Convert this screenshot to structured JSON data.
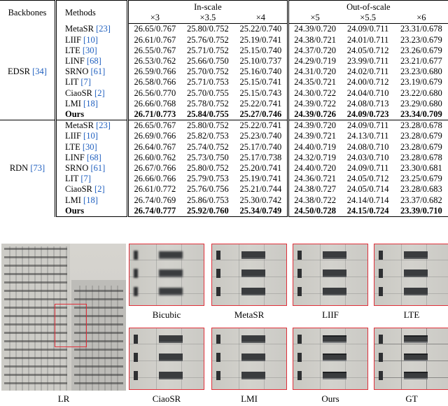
{
  "table": {
    "col_backbones": "Backbones",
    "col_methods": "Methods",
    "group_in": "In-scale",
    "group_out": "Out-of-scale",
    "scales": [
      "×3",
      "×3.5",
      "×4",
      "×5",
      "×5.5",
      "×6"
    ],
    "sections": [
      {
        "backbone": "EDSR",
        "backbone_ref": "[34]",
        "rows": [
          {
            "method": "MetaSR",
            "ref": "[23]",
            "vals": [
              "26.65/0.767",
              "25.80/0.752",
              "25.22/0.740",
              "24.39/0.720",
              "24.09/0.711",
              "23.31/0.678"
            ]
          },
          {
            "method": "LIIF",
            "ref": "[10]",
            "vals": [
              "26.61/0.767",
              "25.76/0.752",
              "25.19/0.741",
              "24.38/0.721",
              "24.01/0.711",
              "23.23/0.679"
            ]
          },
          {
            "method": "LTE",
            "ref": "[30]",
            "vals": [
              "26.55/0.767",
              "25.71/0.752",
              "25.15/0.740",
              "24.37/0.720",
              "24.05/0.712",
              "23.26/0.679"
            ]
          },
          {
            "method": "LINF",
            "ref": "[68]",
            "vals": [
              "26.53/0.762",
              "25.66/0.750",
              "25.10/0.737",
              "24.29/0.719",
              "23.99/0.711",
              "23.21/0.677"
            ]
          },
          {
            "method": "SRNO",
            "ref": "[61]",
            "vals": [
              "26.59/0.766",
              "25.70/0.752",
              "25.16/0.740",
              "24.31/0.720",
              "24.02/0.711",
              "23.23/0.680"
            ]
          },
          {
            "method": "LIT",
            "ref": "[7]",
            "vals": [
              "26.58/0.766",
              "25.71/0.753",
              "25.15/0.741",
              "24.35/0.721",
              "24.00/0.712",
              "23.19/0.679"
            ]
          },
          {
            "method": "CiaoSR",
            "ref": "[2]",
            "vals": [
              "26.56/0.770",
              "25.70/0.755",
              "25.15/0.743",
              "24.30/0.722",
              "24.04/0.710",
              "23.22/0.680"
            ]
          },
          {
            "method": "LMI",
            "ref": "[18]",
            "vals": [
              "26.66/0.768",
              "25.78/0.752",
              "25.22/0.741",
              "24.39/0.722",
              "24.08/0.713",
              "23.29/0.680"
            ]
          },
          {
            "method": "Ours",
            "ref": "",
            "bold": true,
            "vals": [
              "26.71/0.773",
              "25.84/0.755",
              "25.27/0.746",
              "24.39/0.726",
              "24.09/0.723",
              "23.34/0.709"
            ]
          }
        ]
      },
      {
        "backbone": "RDN",
        "backbone_ref": "[73]",
        "rows": [
          {
            "method": "MetaSR",
            "ref": "[23]",
            "vals": [
              "26.65/0.767",
              "25.80/0.752",
              "25.22/0.741",
              "24.39/0.720",
              "24.09/0.711",
              "23.28/0.678"
            ]
          },
          {
            "method": "LIIF",
            "ref": "[10]",
            "vals": [
              "26.69/0.766",
              "25.82/0.753",
              "25.23/0.740",
              "24.39/0.721",
              "24.13/0.711",
              "23.28/0.679"
            ]
          },
          {
            "method": "LTE",
            "ref": "[30]",
            "vals": [
              "26.64/0.767",
              "25.74/0.752",
              "25.17/0.740",
              "24.40/0.719",
              "24.08/0.710",
              "23.28/0.679"
            ]
          },
          {
            "method": "LINF",
            "ref": "[68]",
            "vals": [
              "26.60/0.762",
              "25.73/0.750",
              "25.17/0.738",
              "24.32/0.719",
              "24.03/0.710",
              "23.28/0.678"
            ]
          },
          {
            "method": "SRNO",
            "ref": "[61]",
            "vals": [
              "26.67/0.766",
              "25.80/0.752",
              "25.20/0.741",
              "24.40/0.720",
              "24.09/0.711",
              "23.30/0.681"
            ]
          },
          {
            "method": "LIT",
            "ref": "[7]",
            "vals": [
              "26.66/0.766",
              "25.79/0.753",
              "25.19/0.741",
              "24.36/0.721",
              "24.05/0.712",
              "23.25/0.679"
            ]
          },
          {
            "method": "CiaoSR",
            "ref": "[2]",
            "vals": [
              "26.61/0.772",
              "25.76/0.756",
              "25.21/0.744",
              "24.38/0.727",
              "24.05/0.714",
              "23.28/0.683"
            ]
          },
          {
            "method": "LMI",
            "ref": "[18]",
            "vals": [
              "26.74/0.769",
              "25.86/0.753",
              "25.30/0.742",
              "24.38/0.722",
              "24.14/0.714",
              "23.37/0.682"
            ]
          },
          {
            "method": "Ours",
            "ref": "",
            "bold": true,
            "vals": [
              "26.74/0.777",
              "25.92/0.760",
              "25.34/0.749",
              "24.50/0.728",
              "24.15/0.724",
              "23.39/0.710"
            ]
          }
        ]
      }
    ]
  },
  "figure": {
    "lr_caption": "LR",
    "captions": [
      "Bicubic",
      "MetaSR",
      "LIIF",
      "LTE",
      "CiaoSR",
      "LMI",
      "Ours",
      "GT"
    ]
  }
}
